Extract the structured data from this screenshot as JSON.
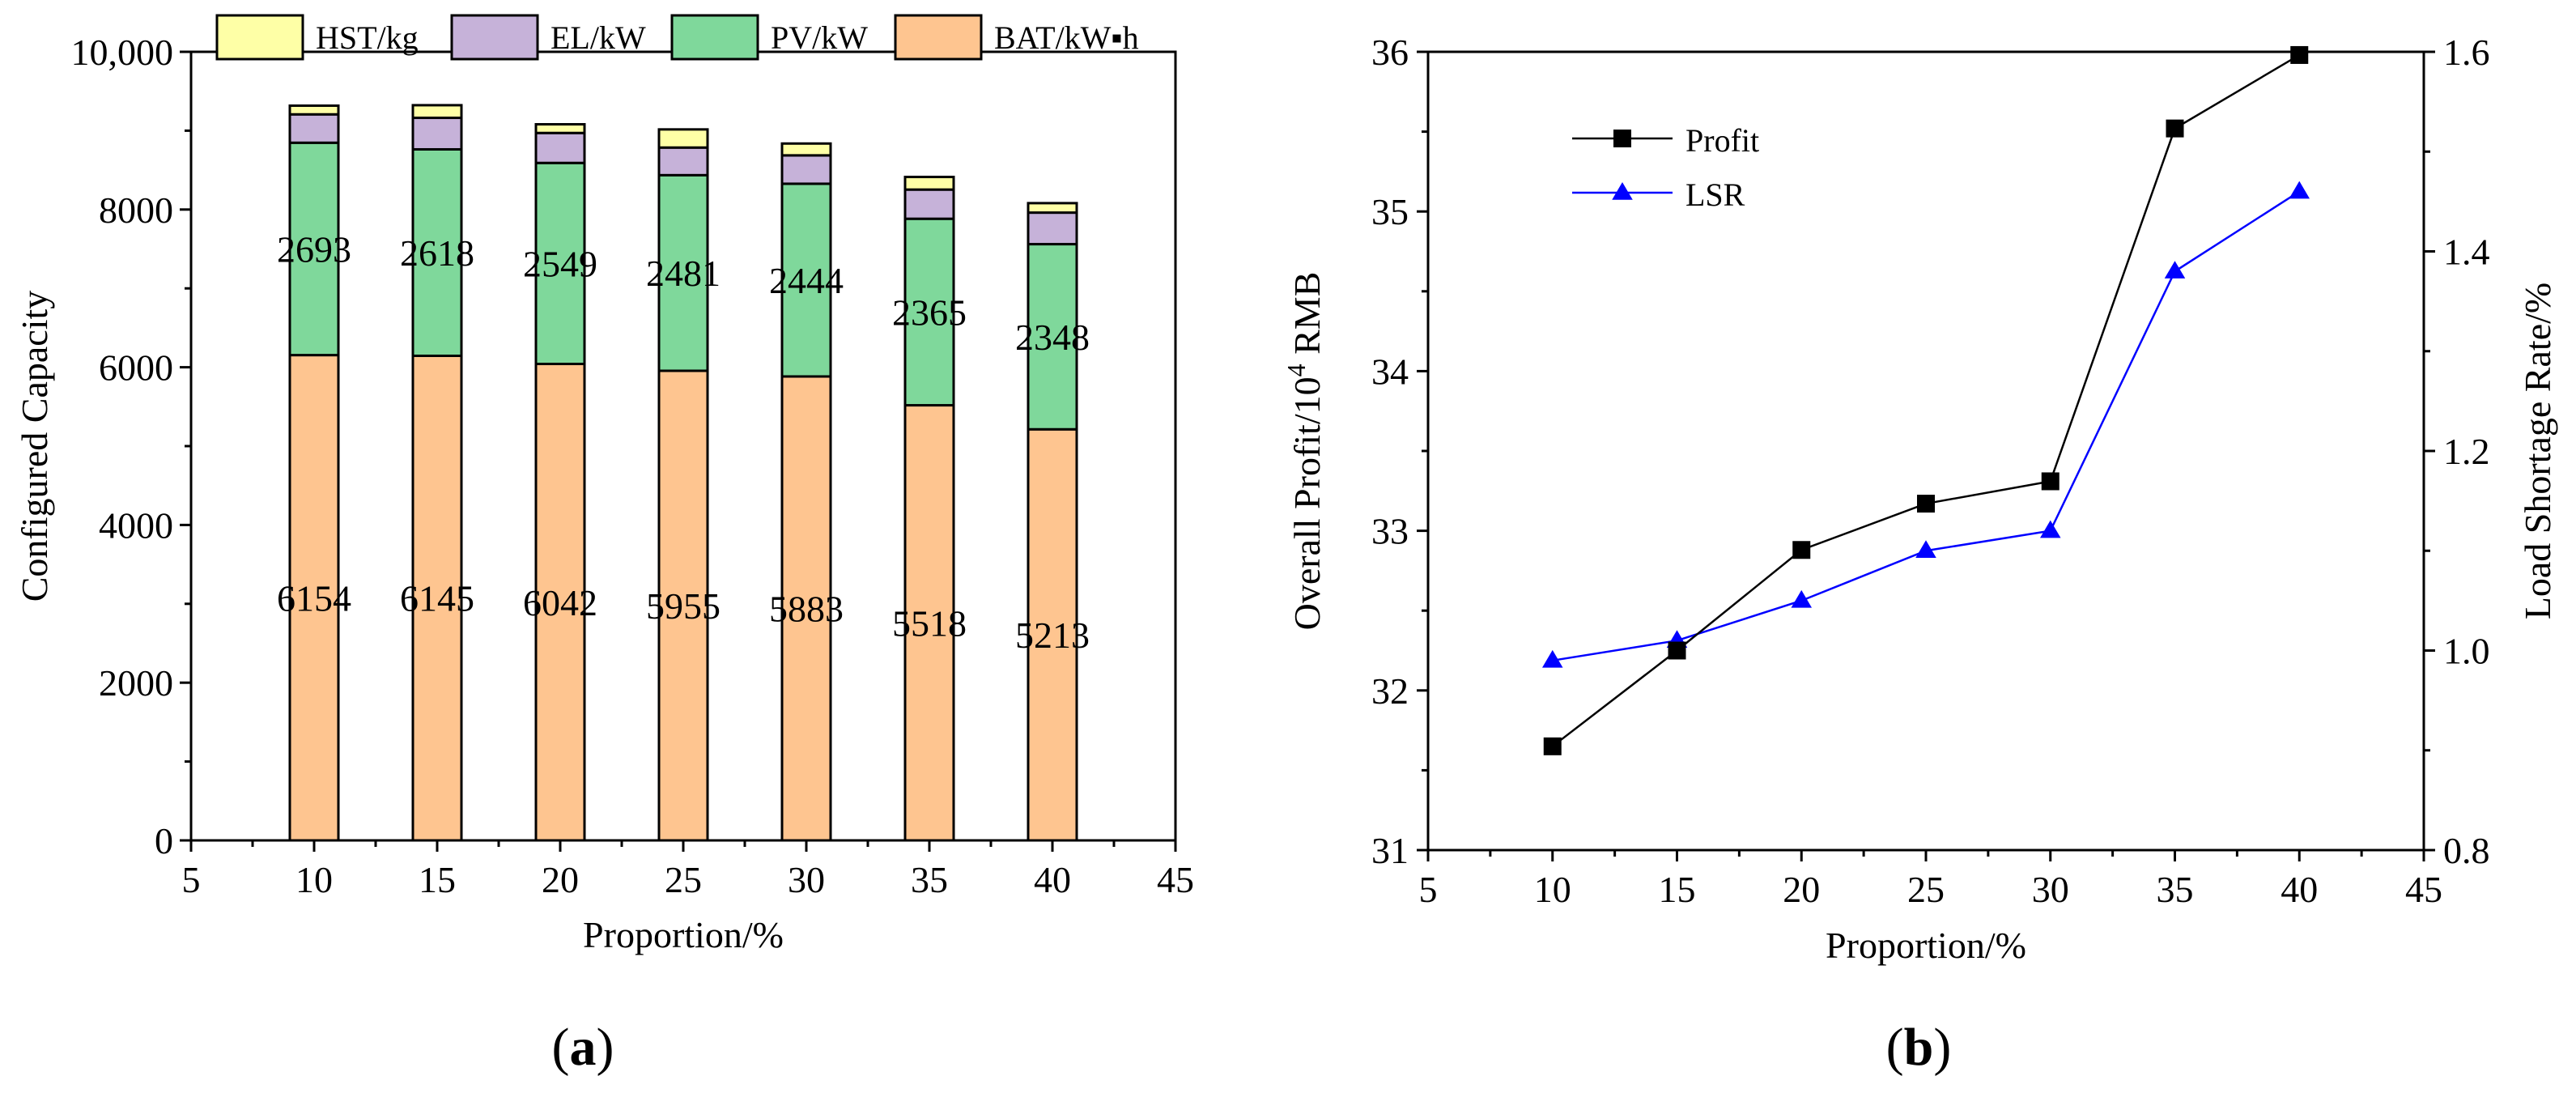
{
  "chart_data": [
    {
      "type": "bar",
      "stacked": true,
      "panel_label": "(a)",
      "panel_letter": "a",
      "x": [
        10,
        15,
        20,
        25,
        30,
        35,
        40
      ],
      "xlabel": "Proportion/%",
      "ylabel": "Configured Capacity",
      "xlim": [
        5,
        45
      ],
      "ylim": [
        0,
        10000
      ],
      "xticks": [
        "5",
        "10",
        "15",
        "20",
        "25",
        "30",
        "35",
        "40",
        "45"
      ],
      "yticks": [
        "0",
        "2000",
        "4000",
        "6000",
        "8000",
        "10,000"
      ],
      "legend": "top",
      "series": [
        {
          "name": "BAT/kW▪h",
          "color": "#FEC590",
          "values": [
            6154,
            6145,
            6042,
            5955,
            5883,
            5518,
            5213
          ],
          "labels": [
            "6154",
            "6145",
            "6042",
            "5955",
            "5883",
            "5518",
            "5213"
          ]
        },
        {
          "name": "PV/kW",
          "color": "#7FD89B",
          "values": [
            2693,
            2618,
            2549,
            2481,
            2444,
            2365,
            2348
          ],
          "labels": [
            "2693",
            "2618",
            "2549",
            "2481",
            "2444",
            "2365",
            "2348"
          ]
        },
        {
          "name": "EL/kW",
          "color": "#C6B2D9",
          "values": [
            360,
            400,
            380,
            350,
            360,
            370,
            400
          ]
        },
        {
          "name": "HST/kg",
          "color": "#FEFFA6",
          "values": [
            110,
            160,
            110,
            230,
            150,
            160,
            120
          ]
        }
      ]
    },
    {
      "type": "line",
      "panel_label": "(b)",
      "panel_letter": "b",
      "x": [
        10,
        15,
        20,
        25,
        30,
        35,
        40
      ],
      "xlabel": "Proportion/%",
      "ylabel_left": "Overall Profit/10",
      "ylabel_left_sup": "4",
      "ylabel_left_unit": " RMB",
      "ylabel_right": "Load Shortage Rate/%",
      "xlim": [
        5,
        45
      ],
      "ylim_left": [
        31,
        36
      ],
      "ylim_right": [
        0.8,
        1.6
      ],
      "xticks": [
        "5",
        "10",
        "15",
        "20",
        "25",
        "30",
        "35",
        "40",
        "45"
      ],
      "yticks_left": [
        "31",
        "32",
        "33",
        "34",
        "35",
        "36"
      ],
      "yticks_right": [
        "0.8",
        "1.0",
        "1.2",
        "1.4",
        "1.6"
      ],
      "legend": "top-left",
      "series": [
        {
          "name": "Profit",
          "axis": "left",
          "color": "#000000",
          "marker": "square",
          "values": [
            31.65,
            32.25,
            32.88,
            33.17,
            33.31,
            35.52,
            35.98
          ]
        },
        {
          "name": "LSR",
          "axis": "right",
          "color": "#0000FF",
          "marker": "triangle",
          "values": [
            0.99,
            1.01,
            1.05,
            1.1,
            1.12,
            1.38,
            1.46
          ]
        }
      ]
    }
  ]
}
